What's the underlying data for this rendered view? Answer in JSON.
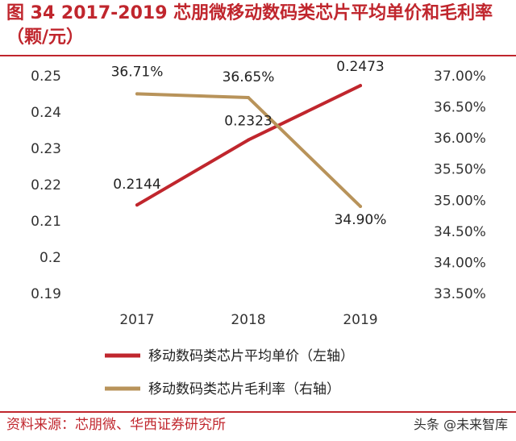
{
  "title": "图 34 2017-2019 芯朋微移动数码类芯片平均单价和毛利率（颗/元）",
  "source": "资料来源：芯朋微、华西证券研究所",
  "watermark": "头条 @未来智库",
  "colors": {
    "accent": "#c0262d",
    "series_price": "#c0262d",
    "series_margin": "#b8935a"
  },
  "chart_data": {
    "type": "line",
    "categories": [
      "2017",
      "2018",
      "2019"
    ],
    "series": [
      {
        "name": "移动数码类芯片平均单价（左轴）",
        "axis": "left",
        "values": [
          0.2144,
          0.2323,
          0.2473
        ],
        "labels": [
          "0.2144",
          "0.2323",
          "0.2473"
        ]
      },
      {
        "name": "移动数码类芯片毛利率（右轴）",
        "axis": "right",
        "values": [
          36.71,
          36.65,
          34.9
        ],
        "labels": [
          "36.71%",
          "36.65%",
          "34.90%"
        ]
      }
    ],
    "y_left": {
      "min": 0.19,
      "max": 0.25,
      "ticks": [
        "0.25",
        "0.24",
        "0.23",
        "0.22",
        "0.21",
        "0.2",
        "0.19"
      ]
    },
    "y_right": {
      "min": 33.5,
      "max": 37.0,
      "ticks": [
        "37.00%",
        "36.50%",
        "36.00%",
        "35.50%",
        "35.00%",
        "34.50%",
        "34.00%",
        "33.50%"
      ]
    },
    "grid": false,
    "legend_position": "bottom"
  }
}
